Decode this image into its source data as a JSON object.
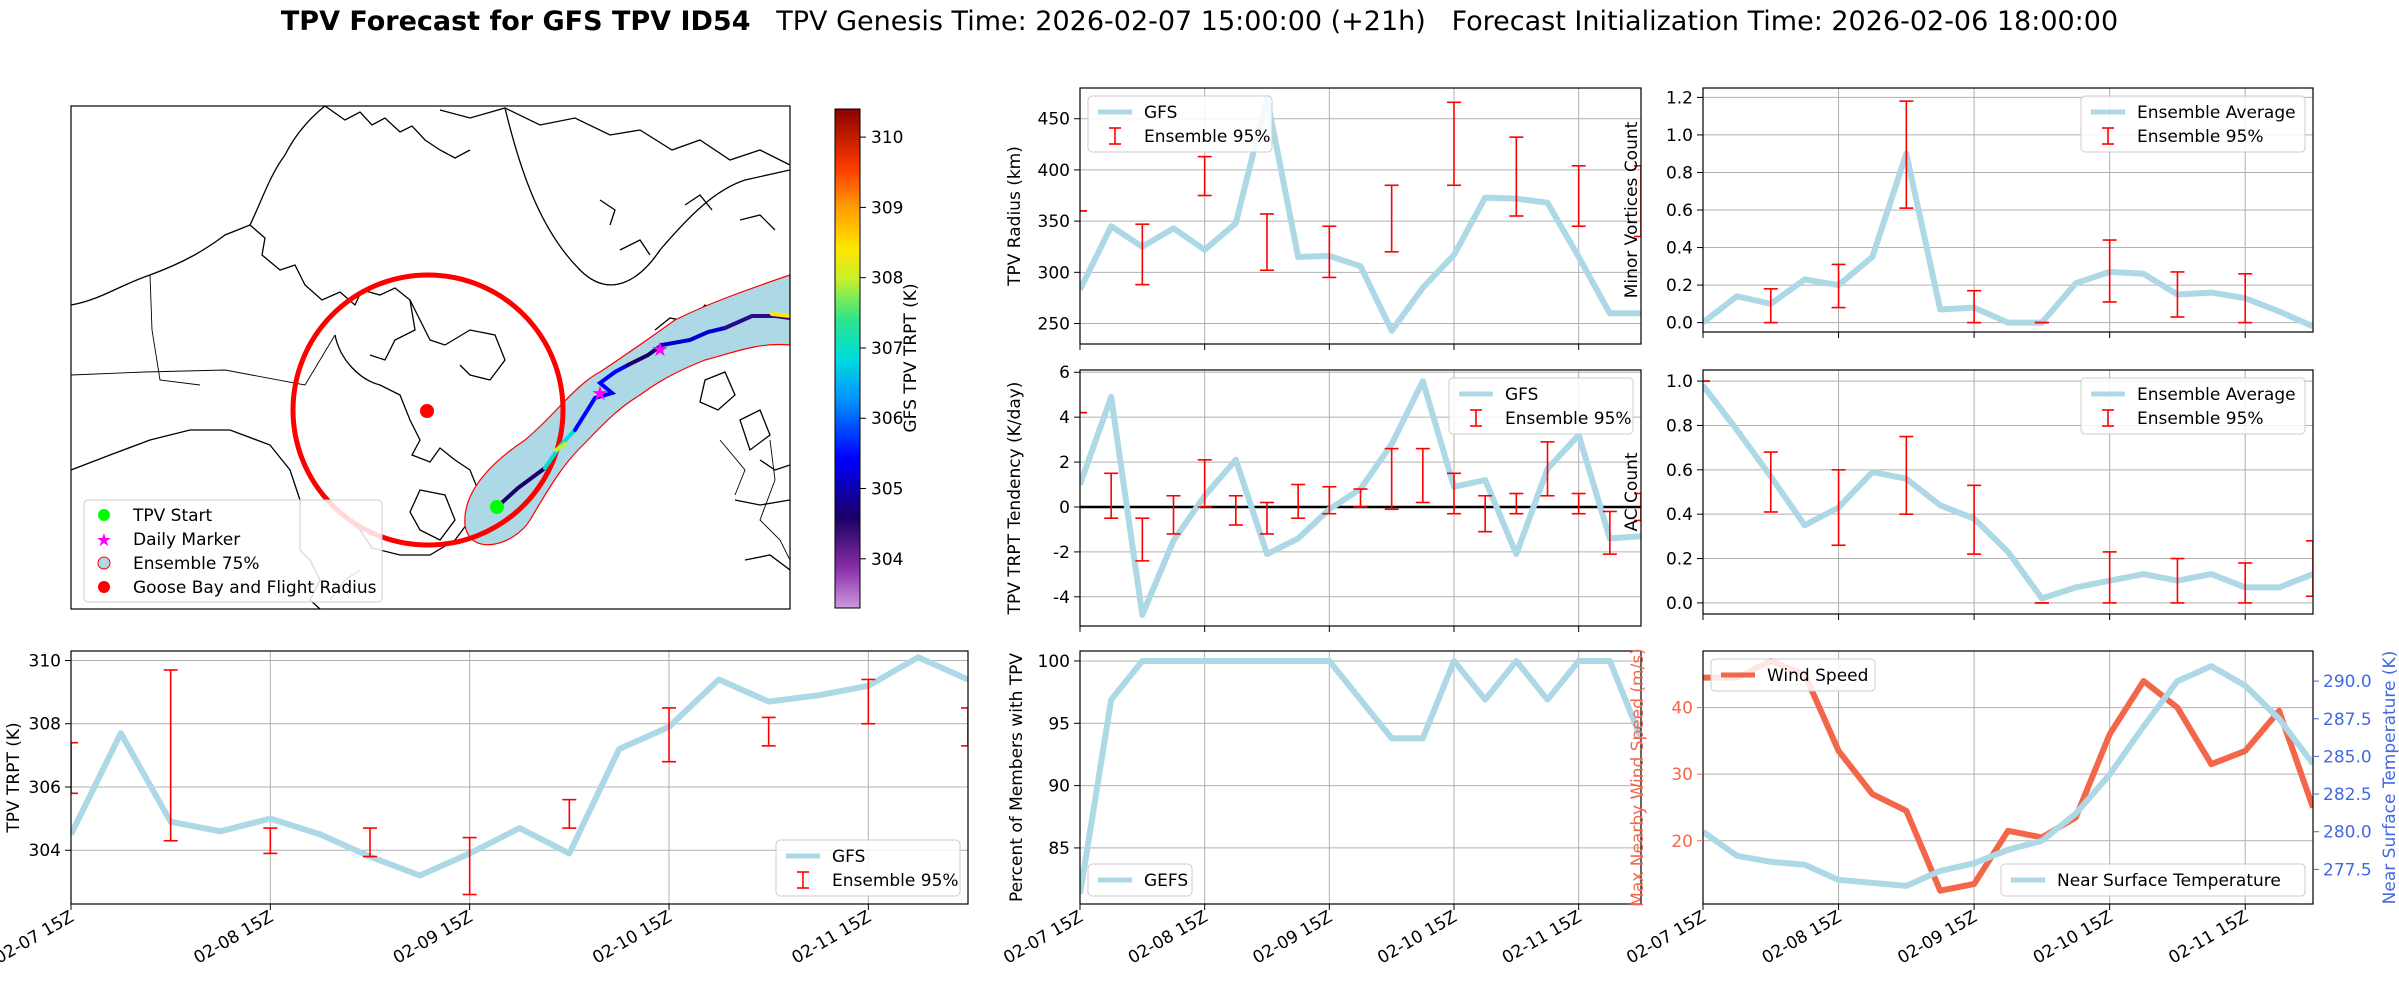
{
  "title": {
    "main": "TPV Forecast for GFS TPV ID54",
    "genesis": "TPV Genesis Time: 2026-02-07 15:00:00 (+21h)",
    "init": "Forecast Initialization Time: 2026-02-06 18:00:00"
  },
  "colors": {
    "gfs_line": "#add8e6",
    "errorbar": "#ff0000",
    "wind_line": "#f4664a",
    "temp_axis": "#4169e1",
    "ensemble_fill": "#add8e6",
    "flight_circle": "#ff0000",
    "start_marker": "#00ff00",
    "daily_marker": "#ff00ff"
  },
  "map": {
    "colorbar_label": "GFS TPV TRPT (K)",
    "colorbar_ticks": [
      304,
      305,
      306,
      307,
      308,
      309,
      310
    ],
    "colorbar_range": [
      303.3,
      310.4
    ],
    "legend": [
      {
        "label": "TPV Start",
        "marker": "green-dot-icon"
      },
      {
        "label": "Daily Marker",
        "marker": "magenta-star-icon"
      },
      {
        "label": "Ensemble 75%",
        "marker": "lightblue-patch-icon"
      },
      {
        "label": "Goose Bay and Flight Radius",
        "marker": "red-dot-icon"
      }
    ]
  },
  "time_ticks": [
    "02-07 15Z",
    "02-08 15Z",
    "02-09 15Z",
    "02-10 15Z",
    "02-11 15Z"
  ],
  "chart_data": [
    {
      "id": "radius",
      "type": "line",
      "ylabel": "TPV Radius (km)",
      "ylim": [
        230,
        480
      ],
      "yticks": [
        250,
        300,
        350,
        400,
        450
      ],
      "x": [
        0,
        6,
        12,
        18,
        24,
        30,
        36,
        42,
        48,
        54,
        60,
        66,
        72,
        78,
        84,
        90,
        96,
        102,
        108
      ],
      "series": [
        {
          "name": "GFS",
          "values": [
            283,
            345,
            325,
            343,
            322,
            348,
            470,
            315,
            316,
            306,
            243,
            285,
            317,
            373,
            372,
            368,
            315,
            260,
            260
          ]
        }
      ],
      "errorbars": {
        "name": "Ensemble 95%",
        "x": [
          0,
          12,
          24,
          36,
          48,
          60,
          72,
          84,
          96,
          108
        ],
        "low": [
          360,
          288,
          375,
          302,
          295,
          320,
          385,
          355,
          345,
          335
        ],
        "high": [
          360,
          347,
          413,
          357,
          345,
          385,
          466,
          432,
          404,
          404
        ]
      },
      "legend": [
        "GFS",
        "Ensemble 95%"
      ]
    },
    {
      "id": "minor",
      "type": "line",
      "ylabel": "Minor Vortices Count",
      "ylim": [
        -0.05,
        1.25
      ],
      "yticks": [
        0.0,
        0.2,
        0.4,
        0.6,
        0.8,
        1.0,
        1.2
      ],
      "yticklabels": [
        "0.0",
        "0.2",
        "0.4",
        "0.6",
        "0.8",
        "1.0",
        "1.2"
      ],
      "x": [
        0,
        6,
        12,
        18,
        24,
        30,
        36,
        42,
        48,
        54,
        60,
        66,
        72,
        78,
        84,
        90,
        96,
        102,
        108
      ],
      "series": [
        {
          "name": "Ensemble Average",
          "values": [
            0.0,
            0.14,
            0.1,
            0.23,
            0.2,
            0.35,
            0.9,
            0.07,
            0.08,
            0.0,
            0.0,
            0.21,
            0.27,
            0.26,
            0.15,
            0.16,
            0.13,
            0.06,
            -0.02
          ]
        }
      ],
      "errorbars": {
        "name": "Ensemble 95%",
        "x": [
          12,
          24,
          36,
          48,
          60,
          72,
          84,
          96
        ],
        "low": [
          0.0,
          0.08,
          0.61,
          0.0,
          0.0,
          0.11,
          0.03,
          0.0
        ],
        "high": [
          0.18,
          0.31,
          1.18,
          0.17,
          0.0,
          0.44,
          0.27,
          0.26
        ]
      },
      "legend": [
        "Ensemble Average",
        "Ensemble 95%"
      ]
    },
    {
      "id": "tendency",
      "type": "line",
      "ylabel": "TPV TRPT Tendency (K/day)",
      "ylim": [
        -5.3,
        6.1
      ],
      "yticks": [
        -4,
        -2,
        0,
        2,
        4,
        6
      ],
      "zero_line": true,
      "x": [
        0,
        6,
        12,
        18,
        24,
        30,
        36,
        42,
        48,
        54,
        60,
        66,
        72,
        78,
        84,
        90,
        96,
        102,
        108
      ],
      "series": [
        {
          "name": "GFS",
          "values": [
            1.0,
            4.9,
            -4.8,
            -1.5,
            0.5,
            2.1,
            -2.1,
            -1.4,
            -0.1,
            0.8,
            2.8,
            5.6,
            0.9,
            1.2,
            -2.1,
            1.7,
            3.2,
            -1.4,
            -1.3
          ]
        }
      ],
      "errorbars": {
        "name": "Ensemble 95%",
        "x": [
          0,
          6,
          12,
          18,
          24,
          30,
          36,
          42,
          48,
          54,
          60,
          66,
          72,
          78,
          84,
          90,
          96,
          102,
          108
        ],
        "low": [
          4.2,
          -0.5,
          -2.4,
          -1.2,
          0.0,
          -0.8,
          -1.2,
          -0.5,
          -0.3,
          0.0,
          -0.1,
          0.2,
          -0.3,
          -1.1,
          -0.3,
          0.5,
          -0.3,
          -2.1,
          -0.6
        ],
        "high": [
          4.2,
          1.5,
          -0.5,
          0.5,
          2.1,
          0.5,
          0.2,
          1.0,
          0.9,
          0.8,
          2.6,
          2.6,
          1.5,
          0.5,
          0.6,
          2.9,
          0.6,
          -0.2,
          0.6
        ]
      },
      "legend": [
        "GFS",
        "Ensemble 95%"
      ]
    },
    {
      "id": "ac",
      "type": "line",
      "ylabel": "AC Count",
      "ylim": [
        -0.05,
        1.05
      ],
      "yticks": [
        0.0,
        0.2,
        0.4,
        0.6,
        0.8,
        1.0
      ],
      "yticklabels": [
        "0.0",
        "0.2",
        "0.4",
        "0.6",
        "0.8",
        "1.0"
      ],
      "x": [
        0,
        6,
        12,
        18,
        24,
        30,
        36,
        42,
        48,
        54,
        60,
        66,
        72,
        78,
        84,
        90,
        96,
        102,
        108
      ],
      "series": [
        {
          "name": "Ensemble Average",
          "values": [
            0.98,
            0.78,
            0.57,
            0.35,
            0.43,
            0.59,
            0.56,
            0.44,
            0.38,
            0.23,
            0.02,
            0.07,
            0.1,
            0.13,
            0.1,
            0.13,
            0.07,
            0.07,
            0.13
          ]
        }
      ],
      "errorbars": {
        "name": "Ensemble 95%",
        "x": [
          0,
          12,
          24,
          36,
          48,
          60,
          72,
          84,
          96,
          108
        ],
        "low": [
          1.0,
          0.41,
          0.26,
          0.4,
          0.22,
          0.0,
          0.0,
          0.0,
          0.0,
          0.03
        ],
        "high": [
          1.0,
          0.68,
          0.6,
          0.75,
          0.53,
          0.0,
          0.23,
          0.2,
          0.18,
          0.28
        ]
      },
      "legend": [
        "Ensemble Average",
        "Ensemble 95%"
      ]
    },
    {
      "id": "trpt",
      "type": "line",
      "ylabel": "TPV TRPT (K)",
      "ylim": [
        302.3,
        310.3
      ],
      "yticks": [
        304,
        306,
        308,
        310
      ],
      "x": [
        0,
        6,
        12,
        18,
        24,
        30,
        36,
        42,
        48,
        54,
        60,
        66,
        72,
        78,
        84,
        90,
        96,
        102,
        108
      ],
      "series": [
        {
          "name": "GFS",
          "values": [
            304.5,
            307.7,
            304.9,
            304.6,
            305.0,
            304.5,
            303.8,
            303.2,
            303.9,
            304.7,
            303.9,
            307.2,
            307.9,
            309.4,
            308.7,
            308.9,
            309.2,
            310.1,
            309.4
          ]
        }
      ],
      "errorbars": {
        "name": "Ensemble 95%",
        "x": [
          0,
          12,
          24,
          36,
          48,
          60,
          72,
          84,
          96,
          108
        ],
        "low": [
          305.8,
          304.3,
          303.9,
          303.8,
          302.6,
          304.7,
          306.8,
          307.3,
          308.0,
          307.3
        ],
        "high": [
          307.4,
          309.7,
          304.7,
          304.7,
          304.4,
          305.6,
          308.5,
          308.2,
          309.4,
          308.5
        ]
      },
      "legend": [
        "GFS",
        "Ensemble 95%"
      ]
    },
    {
      "id": "percent",
      "type": "line",
      "ylabel": "Percent of Members with TPV",
      "ylim": [
        80.5,
        100.8
      ],
      "yticks": [
        85,
        90,
        95,
        100
      ],
      "x": [
        0,
        6,
        12,
        18,
        24,
        30,
        36,
        42,
        48,
        54,
        60,
        66,
        72,
        78,
        84,
        90,
        96,
        102,
        108
      ],
      "series": [
        {
          "name": "GEFS",
          "values": [
            81.3,
            96.9,
            100,
            100,
            100,
            100,
            100,
            100,
            100,
            96.9,
            93.8,
            93.8,
            100,
            96.9,
            100,
            96.9,
            100,
            100,
            93.8
          ]
        }
      ],
      "legend": [
        "GEFS"
      ]
    },
    {
      "id": "wind_temp",
      "type": "line",
      "ylabel": "Max Nearby Wind Speed (m/s)",
      "ylabel_right": "Near Surface Temperature (K)",
      "ylim": [
        10.5,
        48.5
      ],
      "yticks": [
        20,
        30,
        40
      ],
      "ylim_right": [
        275.2,
        292.0
      ],
      "yticks_right": [
        277.5,
        280.0,
        282.5,
        285.0,
        287.5,
        290.0
      ],
      "yticklabels_right": [
        "277.5",
        "280.0",
        "282.5",
        "285.0",
        "287.5",
        "290.0"
      ],
      "x": [
        0,
        6,
        12,
        18,
        24,
        30,
        36,
        42,
        48,
        54,
        60,
        66,
        72,
        78,
        84,
        90,
        96,
        102,
        108
      ],
      "series": [
        {
          "name": "Wind Speed",
          "axis": "left",
          "values": [
            44.5,
            44.5,
            47.0,
            45.0,
            33.5,
            27.0,
            24.5,
            12.5,
            13.5,
            21.5,
            20.5,
            23.5,
            36.0,
            44.0,
            40.0,
            31.5,
            33.5,
            39.5,
            25.0
          ]
        },
        {
          "name": "Near Surface Temperature",
          "axis": "right",
          "values": [
            280.0,
            278.4,
            278.0,
            277.8,
            276.8,
            276.6,
            276.4,
            277.4,
            277.9,
            278.8,
            279.4,
            281.2,
            283.8,
            287.0,
            290.0,
            291.0,
            289.7,
            287.5,
            284.5
          ]
        }
      ],
      "legend": [
        "Wind Speed",
        "Near Surface Temperature"
      ]
    }
  ]
}
